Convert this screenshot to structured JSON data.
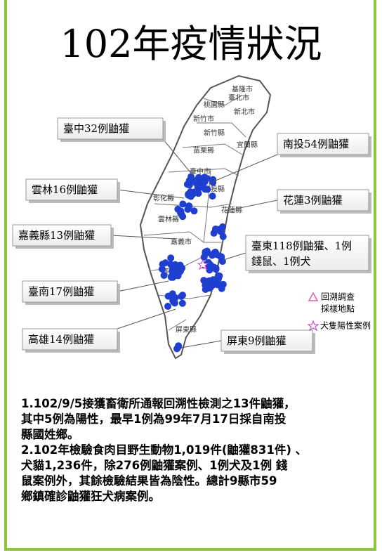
{
  "title": "102年疫情狀況",
  "map_labels": [
    "基隆市",
    "臺北市",
    "新北市",
    "桃園縣",
    "新竹市",
    "新竹縣",
    "苗栗縣",
    "宜蘭縣",
    "臺中市",
    "彰化縣",
    "南投縣",
    "花蓮縣",
    "雲林縣",
    "嘉義市",
    "臺南",
    "屏東縣"
  ],
  "callouts": [
    "臺中32例鼬獾",
    "南投54例鼬獾",
    "雲林16例鼬獾",
    "花蓮3例鼬獾",
    "嘉義縣13例鼬獾",
    "臺東118例鼬獾、1例",
    "錢鼠、1例犬",
    "臺南17例鼬獾",
    "高雄14例鼬獾",
    "屏東9例鼬獾"
  ],
  "legend": [
    "回溯調查",
    "採樣地點",
    "犬隻陽性案例"
  ],
  "notes": [
    "1.102/9/5接獲畜衛所通報回溯性檢測之13件鼬獾，",
    "其中5例為陽性，最早1例為99年7月17日採自南投",
    "縣國姓鄉。",
    "2.102年檢驗食肉目野生動物1,019件(鼬獾831件) 、",
    "犬貓1,236件，除276例鼬獾案例、1例犬及1例 錢",
    "鼠案例外，其餘檢驗結果皆為陰性。總計9縣市59",
    "鄉鎮確診鼬獾狂犬病案例。"
  ]
}
